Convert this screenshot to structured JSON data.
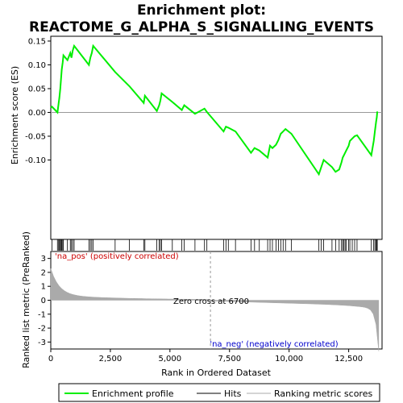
{
  "title_line1": "Enrichment plot:",
  "title_line2": "REACTOME_G_ALPHA_S_SIGNALLING_EVENTS",
  "chart_data": {
    "type": "line",
    "title": "Enrichment plot: REACTOME_G_ALPHA_S_SIGNALLING_EVENTS",
    "xlabel": "Rank in Ordered Dataset",
    "ylabel_top": "Enrichment score (ES)",
    "ylabel_bottom": "Ranked list metric (PreRanked)",
    "x_range": [
      0,
      13900
    ],
    "es_ylim": [
      -0.15,
      0.155
    ],
    "metric_ylim": [
      -3.5,
      3.5
    ],
    "x_ticks": [
      0,
      2500,
      5000,
      7500,
      10000,
      12500
    ],
    "x_tick_labels": [
      "0",
      "2,500",
      "5,000",
      "7,500",
      "10,000",
      "12,500"
    ],
    "es_ticks": [
      -0.1,
      -0.05,
      0.0,
      0.05,
      0.1,
      0.15
    ],
    "es_tick_labels": [
      "-0.10",
      "-0.05",
      "0.00",
      "0.05",
      "0.10",
      "0.15"
    ],
    "metric_ticks": [
      -3,
      -2,
      -1,
      0,
      1,
      2,
      3
    ],
    "metric_tick_labels": [
      "-3",
      "-2",
      "-1",
      "0",
      "1",
      "2",
      "3"
    ],
    "zero_cross_label": "Zero cross at 6700",
    "zero_cross": 6700,
    "pos_label": "'na_pos' (positively correlated)",
    "neg_label": "'na_neg' (negatively correlated)",
    "legend": [
      "Enrichment profile",
      "Hits",
      "Ranking metric scores"
    ],
    "colors": {
      "profile": "#00ee00",
      "hits": "#000000",
      "metric": "#aaaaaa",
      "pos": "#ff0000",
      "neg": "#0000ff"
    },
    "hits": [
      50,
      280,
      330,
      360,
      400,
      430,
      460,
      500,
      530,
      700,
      820,
      870,
      920,
      980,
      1600,
      1660,
      1720,
      1780,
      2700,
      3300,
      3900,
      3950,
      4450,
      4550,
      4600,
      4650,
      5100,
      5500,
      5600,
      6050,
      6450,
      6550,
      7250,
      7350,
      7450,
      7750,
      8400,
      8550,
      8750,
      9100,
      9200,
      9300,
      9450,
      9550,
      9650,
      9750,
      9850,
      10100,
      11250,
      11350,
      11450,
      11800,
      11950,
      12100,
      12200,
      12250,
      12300,
      12350,
      12400,
      12500,
      12550,
      12650,
      12750,
      12850,
      13450,
      13550,
      13600,
      13650,
      13680,
      13700
    ],
    "es_profile": [
      [
        0,
        0.01
      ],
      [
        50,
        0.012
      ],
      [
        280,
        0.0
      ],
      [
        330,
        0.02
      ],
      [
        360,
        0.03
      ],
      [
        400,
        0.05
      ],
      [
        430,
        0.07
      ],
      [
        460,
        0.09
      ],
      [
        500,
        0.105
      ],
      [
        530,
        0.12
      ],
      [
        700,
        0.11
      ],
      [
        820,
        0.125
      ],
      [
        870,
        0.115
      ],
      [
        920,
        0.13
      ],
      [
        980,
        0.14
      ],
      [
        1600,
        0.1
      ],
      [
        1660,
        0.115
      ],
      [
        1720,
        0.125
      ],
      [
        1780,
        0.14
      ],
      [
        2700,
        0.085
      ],
      [
        3300,
        0.055
      ],
      [
        3900,
        0.02
      ],
      [
        3950,
        0.035
      ],
      [
        4450,
        0.003
      ],
      [
        4550,
        0.015
      ],
      [
        4600,
        0.025
      ],
      [
        4650,
        0.04
      ],
      [
        5100,
        0.022
      ],
      [
        5500,
        0.005
      ],
      [
        5600,
        0.015
      ],
      [
        6050,
        -0.003
      ],
      [
        6450,
        0.008
      ],
      [
        6550,
        0.001
      ],
      [
        7250,
        -0.04
      ],
      [
        7350,
        -0.03
      ],
      [
        7450,
        -0.032
      ],
      [
        7750,
        -0.04
      ],
      [
        8400,
        -0.085
      ],
      [
        8550,
        -0.075
      ],
      [
        8750,
        -0.08
      ],
      [
        9100,
        -0.095
      ],
      [
        9200,
        -0.07
      ],
      [
        9300,
        -0.075
      ],
      [
        9450,
        -0.068
      ],
      [
        9550,
        -0.058
      ],
      [
        9650,
        -0.045
      ],
      [
        9750,
        -0.04
      ],
      [
        9850,
        -0.035
      ],
      [
        10100,
        -0.045
      ],
      [
        11250,
        -0.13
      ],
      [
        11350,
        -0.115
      ],
      [
        11450,
        -0.1
      ],
      [
        11800,
        -0.115
      ],
      [
        11950,
        -0.125
      ],
      [
        12100,
        -0.12
      ],
      [
        12200,
        -0.105
      ],
      [
        12250,
        -0.095
      ],
      [
        12300,
        -0.09
      ],
      [
        12350,
        -0.085
      ],
      [
        12400,
        -0.08
      ],
      [
        12500,
        -0.07
      ],
      [
        12550,
        -0.06
      ],
      [
        12650,
        -0.055
      ],
      [
        12750,
        -0.05
      ],
      [
        12850,
        -0.048
      ],
      [
        13450,
        -0.09
      ],
      [
        13550,
        -0.06
      ],
      [
        13600,
        -0.04
      ],
      [
        13650,
        -0.02
      ],
      [
        13680,
        -0.01
      ],
      [
        13700,
        0.002
      ]
    ]
  }
}
